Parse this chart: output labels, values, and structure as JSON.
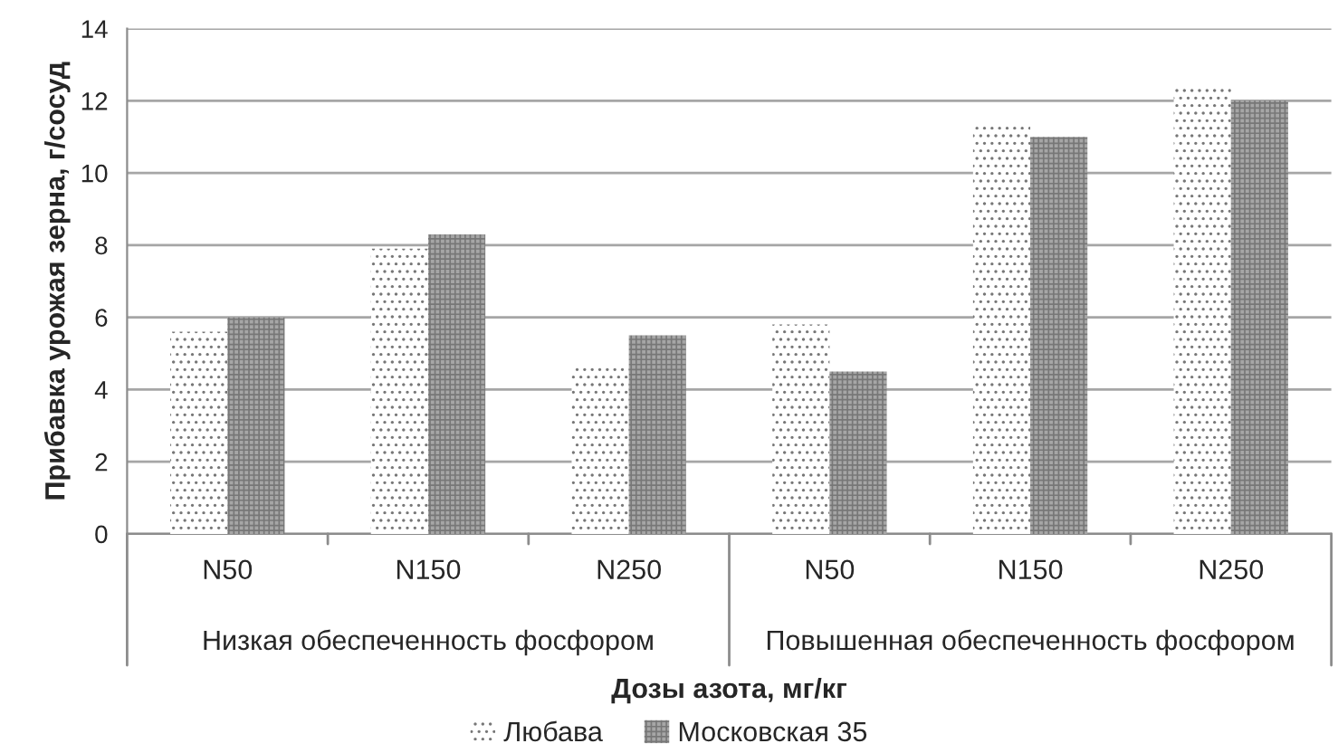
{
  "chart_data": {
    "type": "bar",
    "categories": [
      "N50",
      "N150",
      "N250",
      "N50",
      "N150",
      "N250"
    ],
    "series": [
      {
        "name": "Любава",
        "color": "#ffffff",
        "values": [
          5.6,
          7.9,
          4.7,
          5.8,
          11.4,
          12.4
        ]
      },
      {
        "name": "Московская 35",
        "color": "#a6a6a6",
        "values": [
          6.0,
          8.3,
          5.5,
          4.5,
          11.0,
          12.0
        ]
      }
    ],
    "xlabel": "Дозы азота, мг/кг",
    "ylabel": "Прибавка урожая зерна, г/сосуд",
    "ylim": [
      0,
      14
    ],
    "yticks": [
      0,
      2,
      4,
      6,
      8,
      10,
      12,
      14
    ],
    "annotations": [
      "Низкая обеспеченность фосфором",
      "Повышенная обеспеченность фосфором"
    ],
    "grid": "y",
    "legend": "bottom"
  }
}
